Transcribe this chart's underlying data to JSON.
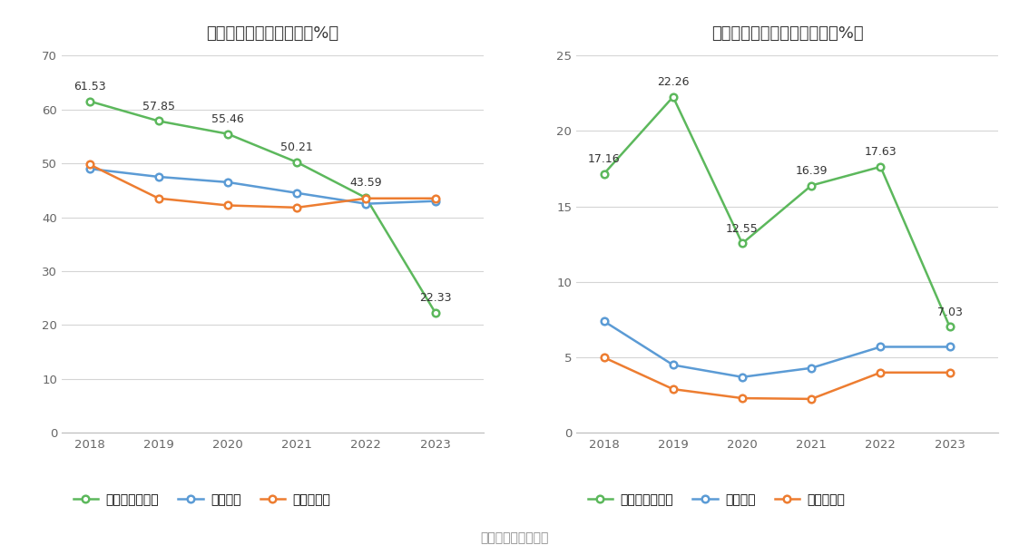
{
  "years": [
    2018,
    2019,
    2020,
    2021,
    2022,
    2023
  ],
  "chart1": {
    "title": "近年来资产负债率情况（%）",
    "company": [
      61.53,
      57.85,
      55.46,
      50.21,
      43.59,
      22.33
    ],
    "industry_avg": [
      49.0,
      47.5,
      46.5,
      44.5,
      42.5,
      43.0
    ],
    "industry_med": [
      49.8,
      43.5,
      42.2,
      41.8,
      43.5,
      43.5
    ],
    "ylim": [
      0,
      70
    ],
    "yticks": [
      0,
      10,
      20,
      30,
      40,
      50,
      60,
      70
    ],
    "company_label": "公司资产负债率",
    "avg_label": "行业均值",
    "med_label": "行业中位数"
  },
  "chart2": {
    "title": "近年来有息资产负债率情况（%）",
    "company": [
      17.16,
      22.26,
      12.55,
      16.39,
      17.63,
      7.03
    ],
    "industry_avg": [
      7.4,
      4.5,
      3.7,
      4.3,
      5.7,
      5.7
    ],
    "industry_med": [
      5.0,
      2.9,
      2.3,
      2.25,
      4.0,
      4.0
    ],
    "ylim": [
      0,
      25
    ],
    "yticks": [
      0,
      5,
      10,
      15,
      20,
      25
    ],
    "company_label": "有息资产负债率",
    "avg_label": "行业均值",
    "med_label": "行业中位数"
  },
  "green_color": "#5cb85c",
  "blue_color": "#5b9bd5",
  "orange_color": "#ed7d31",
  "source_text": "数据来源：恒生聚源",
  "background_color": "#ffffff",
  "grid_color": "#d5d5d5"
}
